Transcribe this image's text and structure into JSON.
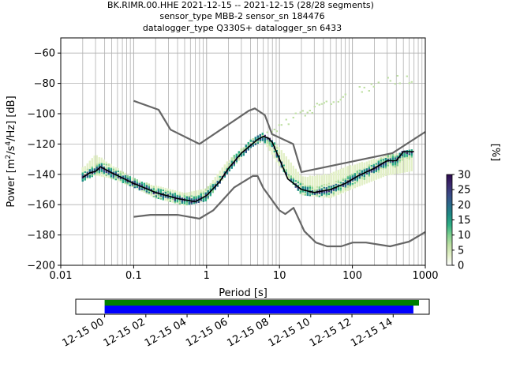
{
  "title_lines": [
    "BK.RIMR.00.HHE   2021-12-15 -- 2021-12-15  (28/28 segments)",
    "sensor_type MBB-2 sensor_sn 184476",
    "datalogger_type Q330S+ datalogger_sn 6433"
  ],
  "colors": {
    "grid": "#b0b0b0",
    "noise_model": "#666666",
    "mode_line": "#000000",
    "coverage_top": "#008000",
    "coverage_bottom": "#0000ff",
    "colormap": [
      "#ffffff",
      "#e3f0c8",
      "#bfe0a4",
      "#7fd08f",
      "#2fae84",
      "#1f8a84",
      "#2a6a8a",
      "#3a4a86",
      "#3b2a6e",
      "#2d0a4e"
    ]
  },
  "chart_data": [
    {
      "type": "heatmap",
      "subtype": "probabilistic power spectral density",
      "xlabel": "Period [s]",
      "ylabel": "Power [m^2/s^4/Hz] [dB]",
      "xscale": "log",
      "xlim": [
        0.01,
        1000
      ],
      "ylim": [
        -200,
        -50
      ],
      "x_tick_labels": [
        "0.01",
        "0.1",
        "1",
        "10",
        "100",
        "1000"
      ],
      "y_ticks": [
        -200,
        -180,
        -160,
        -140,
        -120,
        -100,
        -80,
        -60
      ],
      "grid": true,
      "colorbar": {
        "label": "[%]",
        "range": [
          0,
          30
        ],
        "ticks": [
          0,
          5,
          10,
          15,
          20,
          25,
          30
        ]
      },
      "noise_model_high": {
        "period": [
          0.1,
          0.22,
          0.32,
          0.8,
          3.8,
          4.6,
          6.3,
          7.9,
          15.4,
          20,
          354.8,
          1000
        ],
        "db": [
          -91.5,
          -97.4,
          -110.5,
          -120,
          -98,
          -96.5,
          -101,
          -113.5,
          -120,
          -138.5,
          -126,
          -112
        ]
      },
      "noise_model_low": {
        "period": [
          0.1,
          0.17,
          0.4,
          0.8,
          1.24,
          2.4,
          4.3,
          5,
          6,
          10,
          12,
          15.6,
          21.9,
          31.6,
          45,
          70,
          101,
          154,
          328,
          600,
          1000
        ],
        "db": [
          -168,
          -166.7,
          -166.7,
          -169.2,
          -163.7,
          -148.6,
          -141.1,
          -141.1,
          -149,
          -163.8,
          -166.2,
          -162.1,
          -177.5,
          -185,
          -187.5,
          -187.5,
          -185,
          -185,
          -187.5,
          -184.4,
          -178
        ]
      },
      "mode_line": {
        "period": [
          0.02,
          0.025,
          0.03,
          0.035,
          0.05,
          0.1,
          0.2,
          0.4,
          0.7,
          1,
          1.5,
          2,
          3,
          4,
          5,
          6,
          7,
          8,
          10,
          13,
          20,
          30,
          50,
          80,
          120,
          200,
          300,
          400,
          500,
          700
        ],
        "db": [
          -142,
          -139,
          -138,
          -135,
          -139,
          -146,
          -152,
          -156,
          -158,
          -154,
          -145,
          -136,
          -126,
          -121,
          -117,
          -115,
          -116,
          -119,
          -130,
          -143,
          -150,
          -152,
          -150,
          -146,
          -141,
          -136,
          -131,
          -131,
          -125,
          -125
        ]
      },
      "band_upper": {
        "period": [
          0.02,
          0.03,
          0.05,
          0.1,
          0.2,
          0.5,
          1,
          2,
          4,
          6,
          10,
          20,
          50,
          100,
          300,
          700
        ],
        "db": [
          -136,
          -127,
          -134,
          -143,
          -148,
          -153,
          -149,
          -131,
          -118,
          -113,
          -122,
          -142,
          -140,
          -134,
          -128,
          -123
        ]
      },
      "band_lower": {
        "period": [
          0.02,
          0.03,
          0.05,
          0.1,
          0.2,
          0.5,
          1,
          2,
          4,
          6,
          10,
          20,
          50,
          100,
          300,
          700
        ],
        "db": [
          -144,
          -140,
          -142,
          -148,
          -155,
          -160,
          -157,
          -138,
          -122,
          -117,
          -134,
          -153,
          -155,
          -149,
          -140,
          -137
        ]
      },
      "outlier_trend": {
        "period": [
          2,
          3,
          5,
          10,
          20,
          50,
          100,
          200,
          400,
          700
        ],
        "db": [
          -132,
          -125,
          -117,
          -108,
          -100,
          -93,
          -86,
          -81,
          -78,
          -77
        ]
      }
    },
    {
      "type": "bar",
      "subtype": "data coverage timeline",
      "x_tick_labels": [
        "12-15 00",
        "12-15 02",
        "12-15 04",
        "12-15 06",
        "12-15 08",
        "12-15 10",
        "12-15 12",
        "12-15 14"
      ],
      "xlim_hours": [
        -1.4,
        15.75
      ],
      "series": [
        {
          "color": "#008000",
          "start_hour": 0,
          "end_hour": 15.25
        },
        {
          "color": "#0000ff",
          "start_hour": 0,
          "end_hour": 14.98
        }
      ]
    }
  ]
}
